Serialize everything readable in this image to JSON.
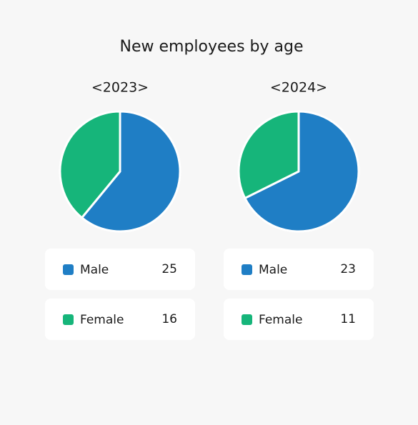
{
  "title": "New employees by age",
  "chart_data": [
    {
      "type": "pie",
      "title": "<2023>",
      "categories": [
        "Male",
        "Female"
      ],
      "values": [
        25,
        16
      ],
      "colors": [
        "#1f7ec5",
        "#16b57a"
      ]
    },
    {
      "type": "pie",
      "title": "<2024>",
      "categories": [
        "Male",
        "Female"
      ],
      "values": [
        23,
        11
      ],
      "colors": [
        "#1f7ec5",
        "#16b57a"
      ]
    }
  ]
}
